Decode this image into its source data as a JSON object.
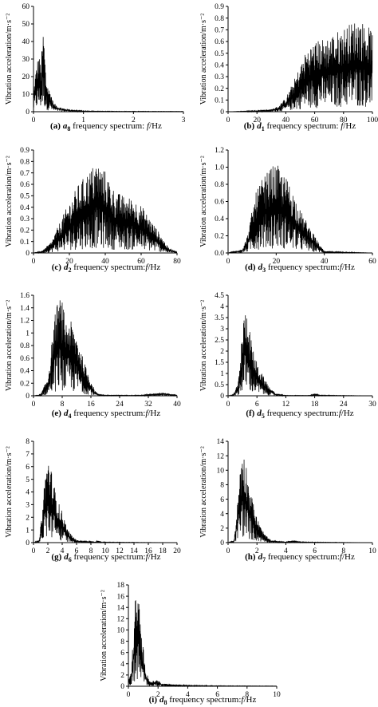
{
  "chart_data": [
    {
      "type": "line",
      "panel": "a",
      "caption": {
        "label": "(a)",
        "series": "a",
        "series_sub": "8",
        "text": " frequency spectrum: ",
        "var": "f",
        "unit": "/Hz"
      },
      "ylabel": "Vibration acceleration/m·s⁻²",
      "xlim": [
        0,
        3
      ],
      "ylim": [
        0,
        60
      ],
      "xticks": [
        "0",
        "1",
        "2",
        "3"
      ],
      "yticks": [
        "0",
        "10",
        "20",
        "30",
        "40",
        "50",
        "60"
      ],
      "envelope": {
        "x": [
          0,
          0.05,
          0.1,
          0.15,
          0.2,
          0.25,
          0.3,
          0.35,
          0.4,
          0.5,
          0.6,
          0.8,
          1.0,
          1.5,
          3.0
        ],
        "y": [
          12,
          25,
          33,
          28,
          49,
          20,
          14,
          11,
          5,
          3,
          2,
          1,
          0.5,
          0.3,
          0.2
        ]
      }
    },
    {
      "type": "line",
      "panel": "b",
      "caption": {
        "label": "(b)",
        "series": "d",
        "series_sub": "1",
        "text": " frequency spectrum: ",
        "var": "f",
        "unit": "/Hz"
      },
      "ylabel": "Vibration acceleration/m·s⁻²",
      "xlim": [
        0,
        100
      ],
      "ylim": [
        0,
        0.9
      ],
      "xticks": [
        "0",
        "20",
        "40",
        "60",
        "80",
        "100"
      ],
      "yticks": [
        "0",
        "0.1",
        "0.2",
        "0.3",
        "0.4",
        "0.5",
        "0.6",
        "0.7",
        "0.8",
        "0.9"
      ],
      "envelope": {
        "x": [
          0,
          20,
          30,
          35,
          40,
          45,
          50,
          55,
          60,
          70,
          80,
          90,
          95,
          100
        ],
        "y": [
          0,
          0.01,
          0.02,
          0.05,
          0.12,
          0.25,
          0.4,
          0.55,
          0.6,
          0.65,
          0.72,
          0.8,
          0.75,
          0.7
        ]
      }
    },
    {
      "type": "line",
      "panel": "c",
      "caption": {
        "label": "(c)",
        "series": "d",
        "series_sub": "2",
        "text": "  frequency spectrum:",
        "var": "f",
        "unit": "/Hz"
      },
      "ylabel": "Vibration acceleration/m·s⁻²",
      "xlim": [
        0,
        80
      ],
      "ylim": [
        0,
        0.9
      ],
      "xticks": [
        "0",
        "20",
        "40",
        "60",
        "80"
      ],
      "yticks": [
        "0",
        "0.1",
        "0.2",
        "0.3",
        "0.4",
        "0.5",
        "0.6",
        "0.7",
        "0.8",
        "0.9"
      ],
      "envelope": {
        "x": [
          0,
          5,
          10,
          15,
          20,
          25,
          30,
          35,
          40,
          45,
          50,
          55,
          60,
          65,
          70,
          75,
          80
        ],
        "y": [
          0,
          0.02,
          0.1,
          0.28,
          0.45,
          0.6,
          0.7,
          0.8,
          0.72,
          0.55,
          0.5,
          0.48,
          0.42,
          0.3,
          0.18,
          0.05,
          0.01
        ]
      }
    },
    {
      "type": "line",
      "panel": "d",
      "caption": {
        "label": "(d)",
        "series": "d",
        "series_sub": "3",
        "text": "  frequency spectrum:",
        "var": "f",
        "unit": "/Hz"
      },
      "ylabel": "Vibration acceleration/m·s⁻²",
      "xlim": [
        0,
        60
      ],
      "ylim": [
        0,
        1.2
      ],
      "xticks": [
        "0",
        "20",
        "40",
        "60"
      ],
      "yticks": [
        "0.0",
        "0.2",
        "0.4",
        "0.6",
        "0.8",
        "1.0",
        "1.2"
      ],
      "envelope": {
        "x": [
          0,
          6,
          8,
          10,
          12,
          15,
          18,
          20,
          22,
          25,
          28,
          30,
          33,
          36,
          38,
          40,
          60
        ],
        "y": [
          0,
          0.05,
          0.2,
          0.5,
          0.75,
          0.9,
          1.0,
          1.05,
          0.95,
          0.85,
          0.65,
          0.5,
          0.35,
          0.2,
          0.1,
          0.02,
          0
        ]
      }
    },
    {
      "type": "line",
      "panel": "e",
      "caption": {
        "label": "(e)",
        "series": "d",
        "series_sub": "4",
        "text": "  frequency spectrum:",
        "var": "f",
        "unit": "/Hz"
      },
      "ylabel": "Vibration acceleration/m·s⁻²",
      "xlim": [
        0,
        40
      ],
      "ylim": [
        0,
        1.6
      ],
      "xticks": [
        "0",
        "8",
        "16",
        "24",
        "32",
        "40"
      ],
      "yticks": [
        "0",
        "0.2",
        "0.4",
        "0.6",
        "0.8",
        "1",
        "1.2",
        "1.4",
        "1.6"
      ],
      "envelope": {
        "x": [
          0,
          2,
          4,
          5,
          6,
          7,
          8,
          9,
          10,
          11,
          12,
          13,
          14,
          15,
          16,
          17,
          18,
          20,
          30,
          34,
          36,
          38,
          40
        ],
        "y": [
          0,
          0.02,
          0.3,
          0.8,
          1.3,
          1.58,
          1.5,
          1.2,
          1.25,
          1.1,
          1.0,
          0.8,
          0.55,
          0.4,
          0.25,
          0.1,
          0.03,
          0.01,
          0.01,
          0.04,
          0.06,
          0.03,
          0.01
        ]
      }
    },
    {
      "type": "line",
      "panel": "f",
      "caption": {
        "label": "(f)",
        "series": "d",
        "series_sub": "5",
        "text": "  frequency spectrum:",
        "var": "f",
        "unit": "/Hz"
      },
      "ylabel": "Vibration acceleration/m·s⁻²",
      "xlim": [
        0,
        30
      ],
      "ylim": [
        0,
        4.5
      ],
      "xticks": [
        "0",
        "6",
        "12",
        "18",
        "24",
        "30"
      ],
      "yticks": [
        "0",
        "0.5",
        "1",
        "1.5",
        "2",
        "2.5",
        "3",
        "3.5",
        "4",
        "4.5"
      ],
      "envelope": {
        "x": [
          0,
          1,
          2,
          2.5,
          3,
          3.5,
          4,
          4.5,
          5,
          6,
          7,
          8,
          9,
          10,
          12,
          17,
          18,
          19,
          30
        ],
        "y": [
          0,
          0.05,
          0.5,
          1.5,
          3.2,
          3.8,
          4.0,
          3.0,
          2.2,
          1.5,
          1.0,
          0.6,
          0.3,
          0.1,
          0.02,
          0.02,
          0.1,
          0.03,
          0
        ]
      }
    },
    {
      "type": "line",
      "panel": "g",
      "caption": {
        "label": "(g)",
        "series": "d",
        "series_sub": "6",
        "text": "  frequency spectrum:",
        "var": "f",
        "unit": "/Hz"
      },
      "ylabel": "Vibration acceleration/m·s⁻²",
      "xlim": [
        0,
        20
      ],
      "ylim": [
        0,
        8
      ],
      "xticks": [
        "0",
        "2",
        "4",
        "6",
        "8",
        "10",
        "12",
        "14",
        "16",
        "18",
        "20"
      ],
      "yticks": [
        "0",
        "1",
        "2",
        "3",
        "4",
        "5",
        "6",
        "7",
        "8"
      ],
      "envelope": {
        "x": [
          0,
          0.8,
          1.2,
          1.6,
          2.0,
          2.4,
          2.8,
          3.2,
          3.6,
          4.0,
          4.5,
          5.0,
          6.0,
          8.5,
          9.0,
          9.5,
          20
        ],
        "y": [
          0,
          0.2,
          2.5,
          5.5,
          7.0,
          6.0,
          4.8,
          3.8,
          3.0,
          2.5,
          1.5,
          0.8,
          0.2,
          0.05,
          0.15,
          0.05,
          0
        ]
      }
    },
    {
      "type": "line",
      "panel": "h",
      "caption": {
        "label": "(h)",
        "series": "d",
        "series_sub": "7",
        "text": "  frequency spectrum:",
        "var": "f",
        "unit": "/Hz"
      },
      "ylabel": "Vibration acceleration/m·s⁻²",
      "xlim": [
        0,
        10
      ],
      "ylim": [
        0,
        14
      ],
      "xticks": [
        "0",
        "2",
        "4",
        "6",
        "8",
        "10"
      ],
      "yticks": [
        "0",
        "2",
        "4",
        "6",
        "8",
        "10",
        "12",
        "14"
      ],
      "envelope": {
        "x": [
          0,
          0.4,
          0.6,
          0.8,
          1.0,
          1.2,
          1.4,
          1.6,
          1.8,
          2.0,
          2.3,
          2.6,
          3.0,
          4.0,
          4.5,
          5.0,
          10
        ],
        "y": [
          0,
          0.3,
          4.0,
          10.0,
          13.0,
          11.5,
          9.0,
          7.0,
          5.0,
          3.5,
          2.0,
          1.0,
          0.3,
          0.1,
          0.3,
          0.1,
          0
        ]
      }
    },
    {
      "type": "line",
      "panel": "i",
      "caption": {
        "label": "(i)",
        "series": "d",
        "series_sub": "8",
        "text": "  frequency spectrum:",
        "var": "f",
        "unit": "/Hz"
      },
      "ylabel": "Vibration acceleration/m·s⁻²",
      "xlim": [
        0,
        10
      ],
      "ylim": [
        0,
        18
      ],
      "xticks": [
        "0",
        "2",
        "4",
        "6",
        "8",
        "10"
      ],
      "yticks": [
        "0",
        "2",
        "4",
        "6",
        "8",
        "10",
        "12",
        "14",
        "16",
        "18"
      ],
      "envelope": {
        "x": [
          0,
          0.2,
          0.35,
          0.5,
          0.6,
          0.7,
          0.8,
          0.9,
          1.0,
          1.1,
          1.3,
          1.5,
          2.0,
          2.2,
          3.0,
          4.0,
          6.0,
          10.0
        ],
        "y": [
          1.0,
          3.0,
          10.0,
          17.5,
          15.0,
          16.5,
          12.0,
          9.0,
          7.0,
          4.0,
          2.0,
          0.8,
          1.2,
          0.5,
          0.3,
          0.2,
          0.1,
          0.05
        ]
      }
    }
  ]
}
